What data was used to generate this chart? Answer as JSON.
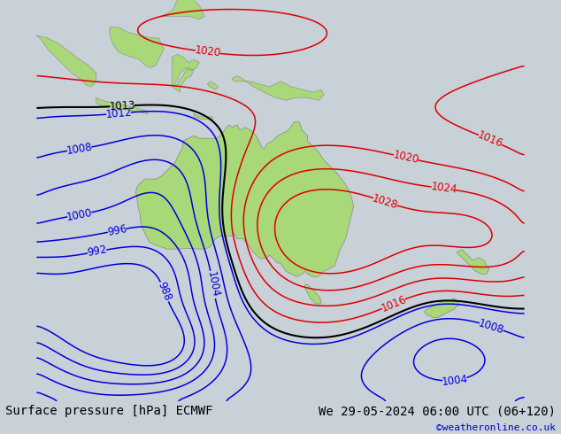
{
  "title_left": "Surface pressure [hPa] ECMWF",
  "title_right": "We 29-05-2024 06:00 UTC (06+120)",
  "copyright": "©weatheronline.co.uk",
  "bg_color": "#c8d0d8",
  "land_color": "#a8d878",
  "ocean_color": "#c8d0d8",
  "contour_blue_color": "#0000dd",
  "contour_red_color": "#dd0000",
  "contour_black_color": "#000000",
  "text_color": "#000000",
  "label_fontsize": 8.5,
  "title_fontsize": 10,
  "copyright_color": "#0000cc",
  "lon_min": 95,
  "lon_max": 185,
  "lat_min": -62,
  "lat_max": 12
}
